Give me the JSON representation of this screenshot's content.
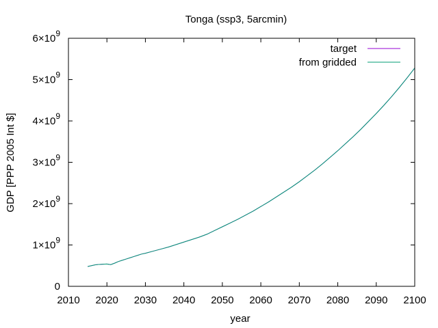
{
  "chart_data": {
    "type": "line",
    "title": "Tonga (ssp3, 5arcmin)",
    "xlabel": "year",
    "ylabel": "GDP [PPP 2005 Int $]",
    "xlim": [
      2010,
      2100
    ],
    "ylim": [
      0,
      6000000000
    ],
    "x_ticks": [
      "2010",
      "2020",
      "2030",
      "2040",
      "2050",
      "2060",
      "2070",
      "2080",
      "2090",
      "2100"
    ],
    "y_ticks": [
      {
        "value": 0,
        "mantissa": "0",
        "exponent": ""
      },
      {
        "value": 1000000000,
        "mantissa": "1×10",
        "exponent": "9"
      },
      {
        "value": 2000000000,
        "mantissa": "2×10",
        "exponent": "9"
      },
      {
        "value": 3000000000,
        "mantissa": "3×10",
        "exponent": "9"
      },
      {
        "value": 4000000000,
        "mantissa": "4×10",
        "exponent": "9"
      },
      {
        "value": 5000000000,
        "mantissa": "5×10",
        "exponent": "9"
      },
      {
        "value": 6000000000,
        "mantissa": "6×10",
        "exponent": "9"
      }
    ],
    "legend_position": "top-right",
    "grid": false,
    "x": [
      2015,
      2016,
      2017,
      2018,
      2019,
      2020,
      2021,
      2022,
      2023,
      2024,
      2025,
      2026,
      2027,
      2028,
      2029,
      2030,
      2032,
      2034,
      2036,
      2038,
      2040,
      2042,
      2044,
      2046,
      2048,
      2050,
      2052,
      2054,
      2056,
      2058,
      2060,
      2062,
      2064,
      2066,
      2068,
      2070,
      2072,
      2074,
      2076,
      2078,
      2080,
      2082,
      2084,
      2086,
      2088,
      2090,
      2092,
      2094,
      2096,
      2098,
      2100
    ],
    "series": [
      {
        "name": "target",
        "color": "#9400d3",
        "values": [
          480000000,
          500000000,
          520000000,
          530000000,
          535000000,
          540000000,
          525000000,
          560000000,
          600000000,
          630000000,
          660000000,
          690000000,
          720000000,
          750000000,
          780000000,
          800000000,
          850000000,
          900000000,
          950000000,
          1010000000,
          1070000000,
          1130000000,
          1190000000,
          1260000000,
          1350000000,
          1440000000,
          1530000000,
          1620000000,
          1720000000,
          1820000000,
          1930000000,
          2040000000,
          2160000000,
          2280000000,
          2400000000,
          2530000000,
          2670000000,
          2810000000,
          2960000000,
          3120000000,
          3280000000,
          3450000000,
          3620000000,
          3800000000,
          3990000000,
          4180000000,
          4380000000,
          4590000000,
          4810000000,
          5040000000,
          5280000000
        ]
      },
      {
        "name": "from gridded",
        "color": "#009e73",
        "values": [
          480000000,
          500000000,
          520000000,
          530000000,
          535000000,
          540000000,
          525000000,
          560000000,
          600000000,
          630000000,
          660000000,
          690000000,
          720000000,
          750000000,
          780000000,
          800000000,
          850000000,
          900000000,
          950000000,
          1010000000,
          1070000000,
          1130000000,
          1190000000,
          1260000000,
          1350000000,
          1440000000,
          1530000000,
          1620000000,
          1720000000,
          1820000000,
          1930000000,
          2040000000,
          2160000000,
          2280000000,
          2400000000,
          2530000000,
          2670000000,
          2810000000,
          2960000000,
          3120000000,
          3280000000,
          3450000000,
          3620000000,
          3800000000,
          3990000000,
          4180000000,
          4380000000,
          4590000000,
          4810000000,
          5040000000,
          5280000000
        ]
      }
    ]
  }
}
